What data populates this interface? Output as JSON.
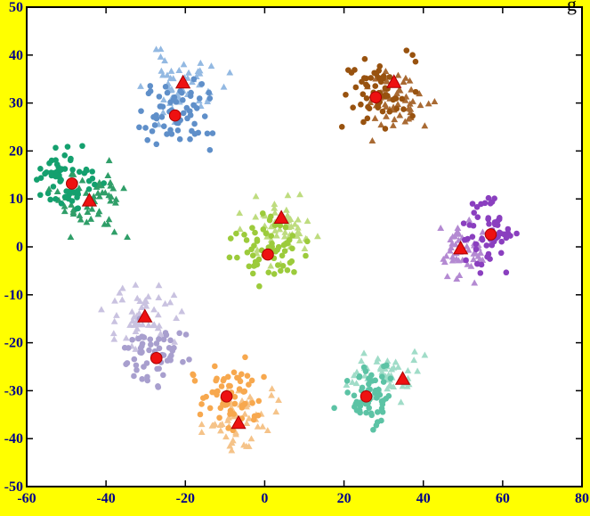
{
  "figure": {
    "title_fragment": "g",
    "background_color": "#ffff00",
    "plot_background": "#ffffff",
    "axis_color": "#000000",
    "tick_label_color": "#00008b"
  },
  "chart_data": {
    "type": "scatter",
    "title": "g",
    "xlabel": "",
    "ylabel": "",
    "xlim": [
      -60,
      80
    ],
    "ylim": [
      -50,
      50
    ],
    "xticks": [
      -60,
      -40,
      -20,
      0,
      20,
      40,
      60,
      80
    ],
    "yticks": [
      -50,
      -40,
      -30,
      -20,
      -10,
      0,
      10,
      20,
      30,
      40,
      50
    ],
    "grid": false,
    "legend_position": "none",
    "centroid_color": "#ee1111",
    "centroid_edge_color": "#aa0000",
    "marker_sizes": {
      "point_radius": 3.3,
      "point_triangle": 4.1,
      "centroid_radius": 6.3,
      "centroid_triangle": 8.2
    },
    "clusters": [
      {
        "name": "cluster-top-left-blue",
        "circles": {
          "color": "#5f8fc9",
          "center": [
            -23,
            27
          ],
          "std": [
            4.2,
            3.4
          ],
          "count": 62
        },
        "triangles": {
          "color": "#93b9e2",
          "center": [
            -20,
            33.5
          ],
          "std": [
            4.8,
            3.4
          ],
          "count": 55
        },
        "centroid_circle": [
          -22.6,
          27.4
        ],
        "centroid_triangle": [
          -20.6,
          34.2
        ]
      },
      {
        "name": "cluster-top-right-brown",
        "circles": {
          "color": "#98520f",
          "center": [
            29,
            32.5
          ],
          "std": [
            4.2,
            3.6
          ],
          "count": 62
        },
        "triangles": {
          "color": "#a96a33",
          "center": [
            32.5,
            31.5
          ],
          "std": [
            4.4,
            4.0
          ],
          "count": 55
        },
        "centroid_circle": [
          28.0,
          31.2
        ],
        "centroid_triangle": [
          32.6,
          34.3
        ]
      },
      {
        "name": "cluster-left-green",
        "circles": {
          "color": "#14a06e",
          "center": [
            -49,
            14
          ],
          "std": [
            3.6,
            3.0
          ],
          "count": 62
        },
        "triangles": {
          "color": "#2f9e68",
          "center": [
            -44.5,
            10
          ],
          "std": [
            4.2,
            3.4
          ],
          "count": 55
        },
        "centroid_circle": [
          -48.6,
          13.2
        ],
        "centroid_triangle": [
          -44.2,
          9.6
        ]
      },
      {
        "name": "cluster-center-yellowgreen",
        "circles": {
          "color": "#9ccb3b",
          "center": [
            1,
            -1
          ],
          "std": [
            4.2,
            3.4
          ],
          "count": 62
        },
        "triangles": {
          "color": "#bedc7f",
          "center": [
            4,
            3.5
          ],
          "std": [
            4.4,
            3.2
          ],
          "count": 55
        },
        "centroid_circle": [
          0.8,
          -1.6
        ],
        "centroid_triangle": [
          4.2,
          6.0
        ]
      },
      {
        "name": "cluster-right-purple",
        "circles": {
          "color": "#8a3fbf",
          "center": [
            56.5,
            3
          ],
          "std": [
            3.2,
            3.6
          ],
          "count": 58
        },
        "triangles": {
          "color": "#b48ad2",
          "center": [
            50,
            -0.5
          ],
          "std": [
            3.2,
            3.0
          ],
          "count": 50
        },
        "centroid_circle": [
          57.0,
          2.6
        ],
        "centroid_triangle": [
          49.4,
          -0.4
        ]
      },
      {
        "name": "cluster-bottom-left-lavender",
        "circles": {
          "color": "#a89fce",
          "center": [
            -28,
            -22.5
          ],
          "std": [
            4.0,
            3.2
          ],
          "count": 58
        },
        "triangles": {
          "color": "#c9c2e0",
          "center": [
            -31,
            -15.5
          ],
          "std": [
            4.4,
            3.2
          ],
          "count": 55
        },
        "centroid_circle": [
          -27.3,
          -23.2
        ],
        "centroid_triangle": [
          -30.2,
          -14.6
        ]
      },
      {
        "name": "cluster-bottom-center-orange",
        "circles": {
          "color": "#f7a84e",
          "center": [
            -9,
            -31
          ],
          "std": [
            4.0,
            3.4
          ],
          "count": 62
        },
        "triangles": {
          "color": "#f5c389",
          "center": [
            -6,
            -36.5
          ],
          "std": [
            4.2,
            3.2
          ],
          "count": 55
        },
        "centroid_circle": [
          -9.6,
          -31.2
        ],
        "centroid_triangle": [
          -6.6,
          -36.8
        ]
      },
      {
        "name": "cluster-bottom-right-teal",
        "circles": {
          "color": "#5cc3a5",
          "center": [
            26,
            -31
          ],
          "std": [
            3.6,
            3.4
          ],
          "count": 58
        },
        "triangles": {
          "color": "#a0dcc8",
          "center": [
            30.5,
            -26.5
          ],
          "std": [
            4.2,
            3.2
          ],
          "count": 55
        },
        "centroid_circle": [
          25.6,
          -31.2
        ],
        "centroid_triangle": [
          34.8,
          -27.6
        ]
      }
    ]
  }
}
